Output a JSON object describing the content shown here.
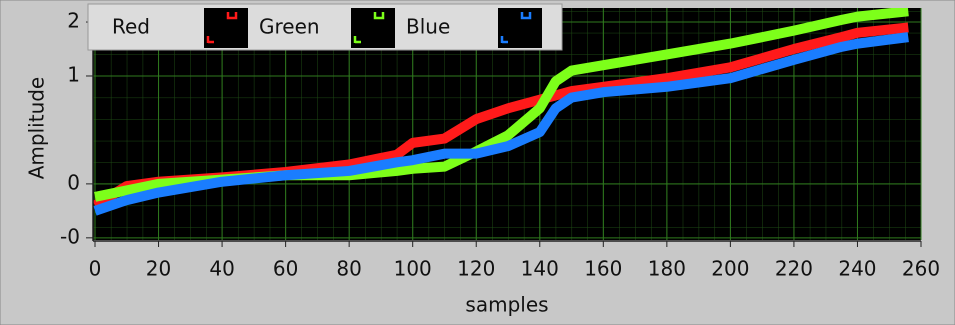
{
  "chart_data": {
    "type": "line",
    "x_label": "samples",
    "y_label": "Amplitude",
    "x": [
      0,
      10,
      20,
      40,
      60,
      80,
      95,
      100,
      110,
      120,
      130,
      140,
      145,
      150,
      160,
      180,
      200,
      220,
      235,
      240,
      256
    ],
    "series": [
      {
        "name": "Red",
        "color": "#ff1a1a",
        "values": [
          -0.2,
          -0.02,
          0.02,
          0.06,
          0.11,
          0.18,
          0.27,
          0.38,
          0.42,
          0.6,
          0.7,
          0.78,
          0.82,
          0.86,
          0.9,
          0.98,
          1.08,
          1.25,
          1.36,
          1.4,
          1.45
        ]
      },
      {
        "name": "Green",
        "color": "#7dff1a",
        "values": [
          -0.12,
          -0.06,
          0.0,
          0.04,
          0.08,
          0.08,
          0.12,
          0.14,
          0.16,
          0.3,
          0.45,
          0.7,
          0.95,
          1.05,
          1.1,
          1.2,
          1.3,
          1.42,
          1.52,
          1.55,
          1.6
        ]
      },
      {
        "name": "Blue",
        "color": "#1a7dff",
        "values": [
          -0.25,
          -0.15,
          -0.08,
          0.02,
          0.08,
          0.12,
          0.2,
          0.22,
          0.28,
          0.28,
          0.35,
          0.48,
          0.7,
          0.8,
          0.85,
          0.9,
          0.98,
          1.15,
          1.27,
          1.3,
          1.36
        ]
      }
    ],
    "xlim": [
      0,
      260
    ],
    "xticks": [
      0,
      20,
      40,
      60,
      80,
      100,
      120,
      140,
      160,
      180,
      200,
      220,
      240,
      260
    ],
    "ylim": [
      -0.52,
      1.63
    ],
    "yticks": [
      {
        "value": -0.5,
        "label": "-0"
      },
      0,
      1,
      {
        "value": 1.5,
        "label": "2"
      }
    ],
    "grid": true,
    "legend": "top-left"
  }
}
